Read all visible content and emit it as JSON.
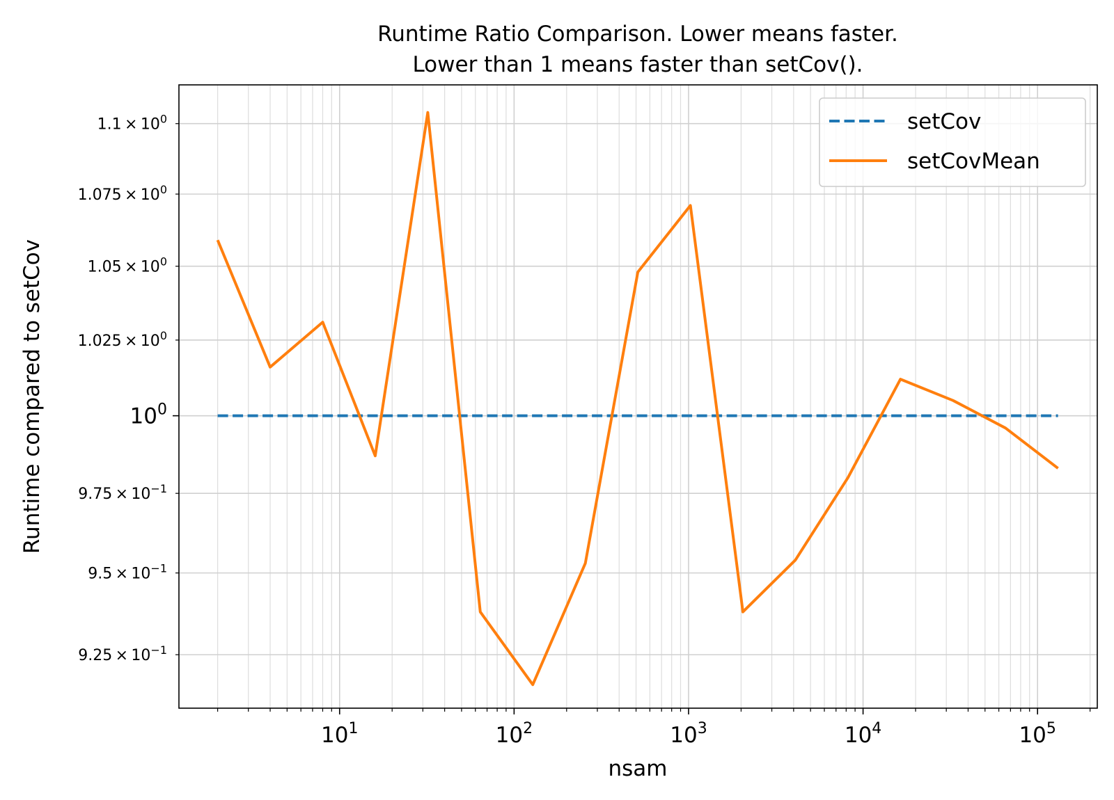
{
  "chart_data": {
    "type": "line",
    "title_lines": [
      "Runtime Ratio Comparison. Lower means faster.",
      "Lower than 1 means faster than setCov()."
    ],
    "xlabel": "nsam",
    "ylabel": "Runtime compared to setCov",
    "x_scale": "log",
    "y_scale": "log",
    "xlim": [
      1.2,
      220000
    ],
    "ylim": [
      0.909,
      1.114
    ],
    "grid": true,
    "legend_position": "upper right",
    "x_ticks": [
      {
        "value": 10,
        "base": "10",
        "exp": "1"
      },
      {
        "value": 100,
        "base": "10",
        "exp": "2"
      },
      {
        "value": 1000,
        "base": "10",
        "exp": "3"
      },
      {
        "value": 10000,
        "base": "10",
        "exp": "4"
      },
      {
        "value": 100000,
        "base": "10",
        "exp": "5"
      }
    ],
    "y_ticks": [
      {
        "value": 1.1,
        "mant": "1.1",
        "exp": "0",
        "major": false
      },
      {
        "value": 1.075,
        "mant": "1.075",
        "exp": "0",
        "major": false
      },
      {
        "value": 1.05,
        "mant": "1.05",
        "exp": "0",
        "major": false
      },
      {
        "value": 1.025,
        "mant": "1.025",
        "exp": "0",
        "major": false
      },
      {
        "value": 1.0,
        "mant": "10",
        "exp": "0",
        "major": true
      },
      {
        "value": 0.975,
        "mant": "9.75",
        "exp": "−1",
        "major": false
      },
      {
        "value": 0.95,
        "mant": "9.5",
        "exp": "−1",
        "major": false
      },
      {
        "value": 0.925,
        "mant": "9.25",
        "exp": "−1",
        "major": false
      }
    ],
    "x": [
      2,
      4,
      8,
      16,
      32,
      64,
      128,
      256,
      512,
      1024,
      2048,
      4096,
      8192,
      16384,
      32768,
      65536,
      131072
    ],
    "series": [
      {
        "name": "setCov",
        "color": "#1f77b4",
        "dash": "dashed",
        "values": [
          1,
          1,
          1,
          1,
          1,
          1,
          1,
          1,
          1,
          1,
          1,
          1,
          1,
          1,
          1,
          1,
          1
        ]
      },
      {
        "name": "setCovMean",
        "color": "#ff7f0e",
        "dash": "solid",
        "values": [
          1.059,
          1.016,
          1.031,
          0.987,
          1.104,
          0.938,
          0.916,
          0.953,
          1.048,
          1.071,
          0.938,
          0.954,
          0.98,
          1.012,
          1.005,
          0.996,
          0.983
        ]
      }
    ]
  }
}
